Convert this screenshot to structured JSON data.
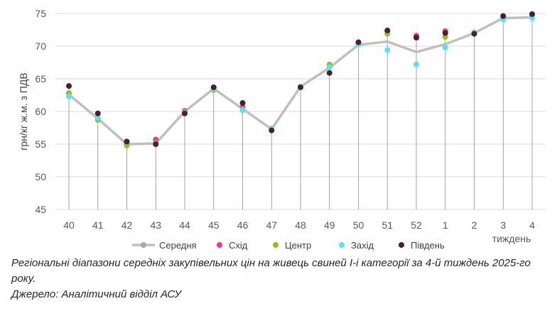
{
  "chart_data": {
    "type": "line",
    "title": "",
    "ylabel": "грн/кг ж.м. з ПДВ",
    "xlabel": "тиждень",
    "ylim": [
      45,
      75
    ],
    "yticks": [
      45,
      50,
      55,
      60,
      65,
      70,
      75
    ],
    "categories": [
      "40",
      "41",
      "42",
      "43",
      "44",
      "45",
      "46",
      "47",
      "48",
      "49",
      "50",
      "51",
      "52",
      "1",
      "2",
      "3",
      "4"
    ],
    "series": [
      {
        "name": "Середня",
        "kind": "line",
        "color": "#bfbfbf",
        "values": [
          62.6,
          58.9,
          55.0,
          55.1,
          60.0,
          63.5,
          60.4,
          57.3,
          63.8,
          66.7,
          70.2,
          70.7,
          69.1,
          70.3,
          72.0,
          74.3,
          74.4
        ]
      },
      {
        "name": "Схід",
        "kind": "points",
        "color": "#e8389b",
        "values": [
          62.8,
          58.9,
          55.1,
          55.7,
          60.1,
          63.5,
          60.7,
          57.4,
          63.8,
          66.9,
          70.5,
          72.3,
          71.6,
          72.3,
          72.1,
          74.6,
          74.9
        ]
      },
      {
        "name": "Центр",
        "kind": "points",
        "color": "#92c01f",
        "values": [
          62.8,
          58.7,
          54.8,
          55.2,
          59.9,
          63.3,
          60.3,
          57.2,
          63.8,
          67.2,
          70.3,
          71.9,
          71.3,
          71.4,
          72.0,
          74.4,
          74.8
        ]
      },
      {
        "name": "Захід",
        "kind": "points",
        "color": "#55e3f5",
        "values": [
          62.3,
          59.0,
          55.4,
          55.0,
          59.8,
          63.5,
          60.2,
          57.4,
          63.8,
          66.8,
          70.3,
          69.4,
          67.2,
          69.8,
          72.1,
          74.1,
          74.3
        ]
      },
      {
        "name": "Південь",
        "kind": "points",
        "color": "#4a1f33",
        "values": [
          63.9,
          59.7,
          55.4,
          55.0,
          59.7,
          63.7,
          61.3,
          57.1,
          63.7,
          65.9,
          70.6,
          72.4,
          71.3,
          72.0,
          71.9,
          74.6,
          74.9
        ]
      }
    ]
  },
  "caption": {
    "line1": "Регіональні діапазони середніх закупівельних цін на живець свиней І-і категорії за 4-й тиждень 2025-го року.",
    "line2": "Джерело: Аналітичний відділ АСУ"
  }
}
